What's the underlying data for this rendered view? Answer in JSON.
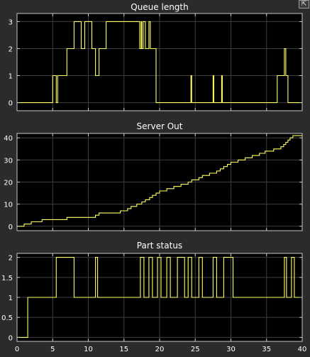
{
  "window": {
    "restore_icon": "restore-window-icon",
    "restore_glyph": "⇱"
  },
  "colors": {
    "background": "#2b2b2b",
    "axes": "#000000",
    "grid": "#3f3f3f",
    "line": "#ffff66",
    "text": "#ffffff",
    "frame": "#c8c8c8"
  },
  "chart_data": [
    {
      "type": "line",
      "title": "Queue length",
      "step": true,
      "xlim": [
        0,
        40
      ],
      "ylim": [
        -0.3,
        3.3
      ],
      "xticks": [
        0,
        5,
        10,
        15,
        20,
        25,
        30,
        35,
        40
      ],
      "yticks": [
        0,
        1,
        2,
        3
      ],
      "xtick_labels_visible": false,
      "x": [
        0,
        5.0,
        5.5,
        5.7,
        6.0,
        7.0,
        7.9,
        8.0,
        9.0,
        9.5,
        10.5,
        11.0,
        11.5,
        11.8,
        12.5,
        13.0,
        17.2,
        17.4,
        17.5,
        17.7,
        18.0,
        18.5,
        18.7,
        19.5,
        24.4,
        24.5,
        27.5,
        27.6,
        28.7,
        28.8,
        36.5,
        37.5,
        37.7,
        38.0,
        40.0
      ],
      "y": [
        0,
        1,
        0,
        1,
        1,
        2,
        2,
        3,
        2,
        3,
        2,
        1,
        2,
        2,
        3,
        3,
        2,
        3,
        2,
        3,
        2,
        3,
        2,
        0,
        1,
        0,
        1,
        0,
        1,
        0,
        1,
        2,
        1,
        0,
        0
      ]
    },
    {
      "type": "line",
      "title": "Server Out",
      "step": true,
      "xlim": [
        0,
        40
      ],
      "ylim": [
        -2,
        42
      ],
      "xticks": [
        0,
        5,
        10,
        15,
        20,
        25,
        30,
        35,
        40
      ],
      "yticks": [
        0,
        10,
        20,
        30,
        40
      ],
      "xtick_labels_visible": false,
      "x": [
        0,
        1.0,
        2.0,
        3.5,
        7.0,
        11.0,
        11.5,
        14.5,
        15.5,
        16.0,
        16.8,
        17.5,
        18.0,
        18.6,
        19.0,
        19.5,
        20.0,
        21.0,
        22.0,
        23.0,
        24.0,
        24.5,
        25.5,
        26.0,
        27.0,
        28.0,
        28.5,
        29.0,
        29.5,
        30.0,
        31.0,
        32.0,
        33.0,
        34.0,
        34.8,
        36.0,
        37.0,
        37.4,
        37.7,
        38.0,
        38.3,
        38.7,
        40.0
      ],
      "y": [
        0,
        1,
        2,
        3,
        4,
        5,
        6,
        7,
        8,
        9,
        10,
        11,
        12,
        13,
        14,
        15,
        16,
        17,
        18,
        19,
        20,
        21,
        22,
        23,
        24,
        25,
        26,
        27,
        28,
        29,
        30,
        31,
        32,
        33,
        34,
        35,
        36,
        37,
        38,
        39,
        40,
        41,
        41
      ]
    },
    {
      "type": "line",
      "title": "Part status",
      "step": true,
      "xlim": [
        0,
        40
      ],
      "ylim": [
        -0.1,
        2.1
      ],
      "xticks": [
        0,
        5,
        10,
        15,
        20,
        25,
        30,
        35,
        40
      ],
      "xtick_labels": [
        "0",
        "5",
        "10",
        "15",
        "20",
        "25",
        "30",
        "35",
        "40"
      ],
      "yticks": [
        0,
        0.5,
        1,
        1.5,
        2
      ],
      "ytick_labels": [
        "0",
        "0.5",
        "1",
        "1.5",
        "2"
      ],
      "xtick_labels_visible": true,
      "x": [
        0,
        1.5,
        5.5,
        8.0,
        11.0,
        11.3,
        17.3,
        17.8,
        18.5,
        19.0,
        19.7,
        20.2,
        21.0,
        21.5,
        22.5,
        23.5,
        24.0,
        24.5,
        25.5,
        26.0,
        27.5,
        28.0,
        29.0,
        30.3,
        37.5,
        37.8,
        38.5,
        38.9,
        40.0
      ],
      "y": [
        0,
        1,
        2,
        1,
        2,
        1,
        2,
        1,
        2,
        1,
        2,
        1,
        2,
        1,
        2,
        1,
        2,
        1,
        2,
        1,
        2,
        1,
        2,
        1,
        2,
        1,
        2,
        1,
        1
      ]
    }
  ]
}
